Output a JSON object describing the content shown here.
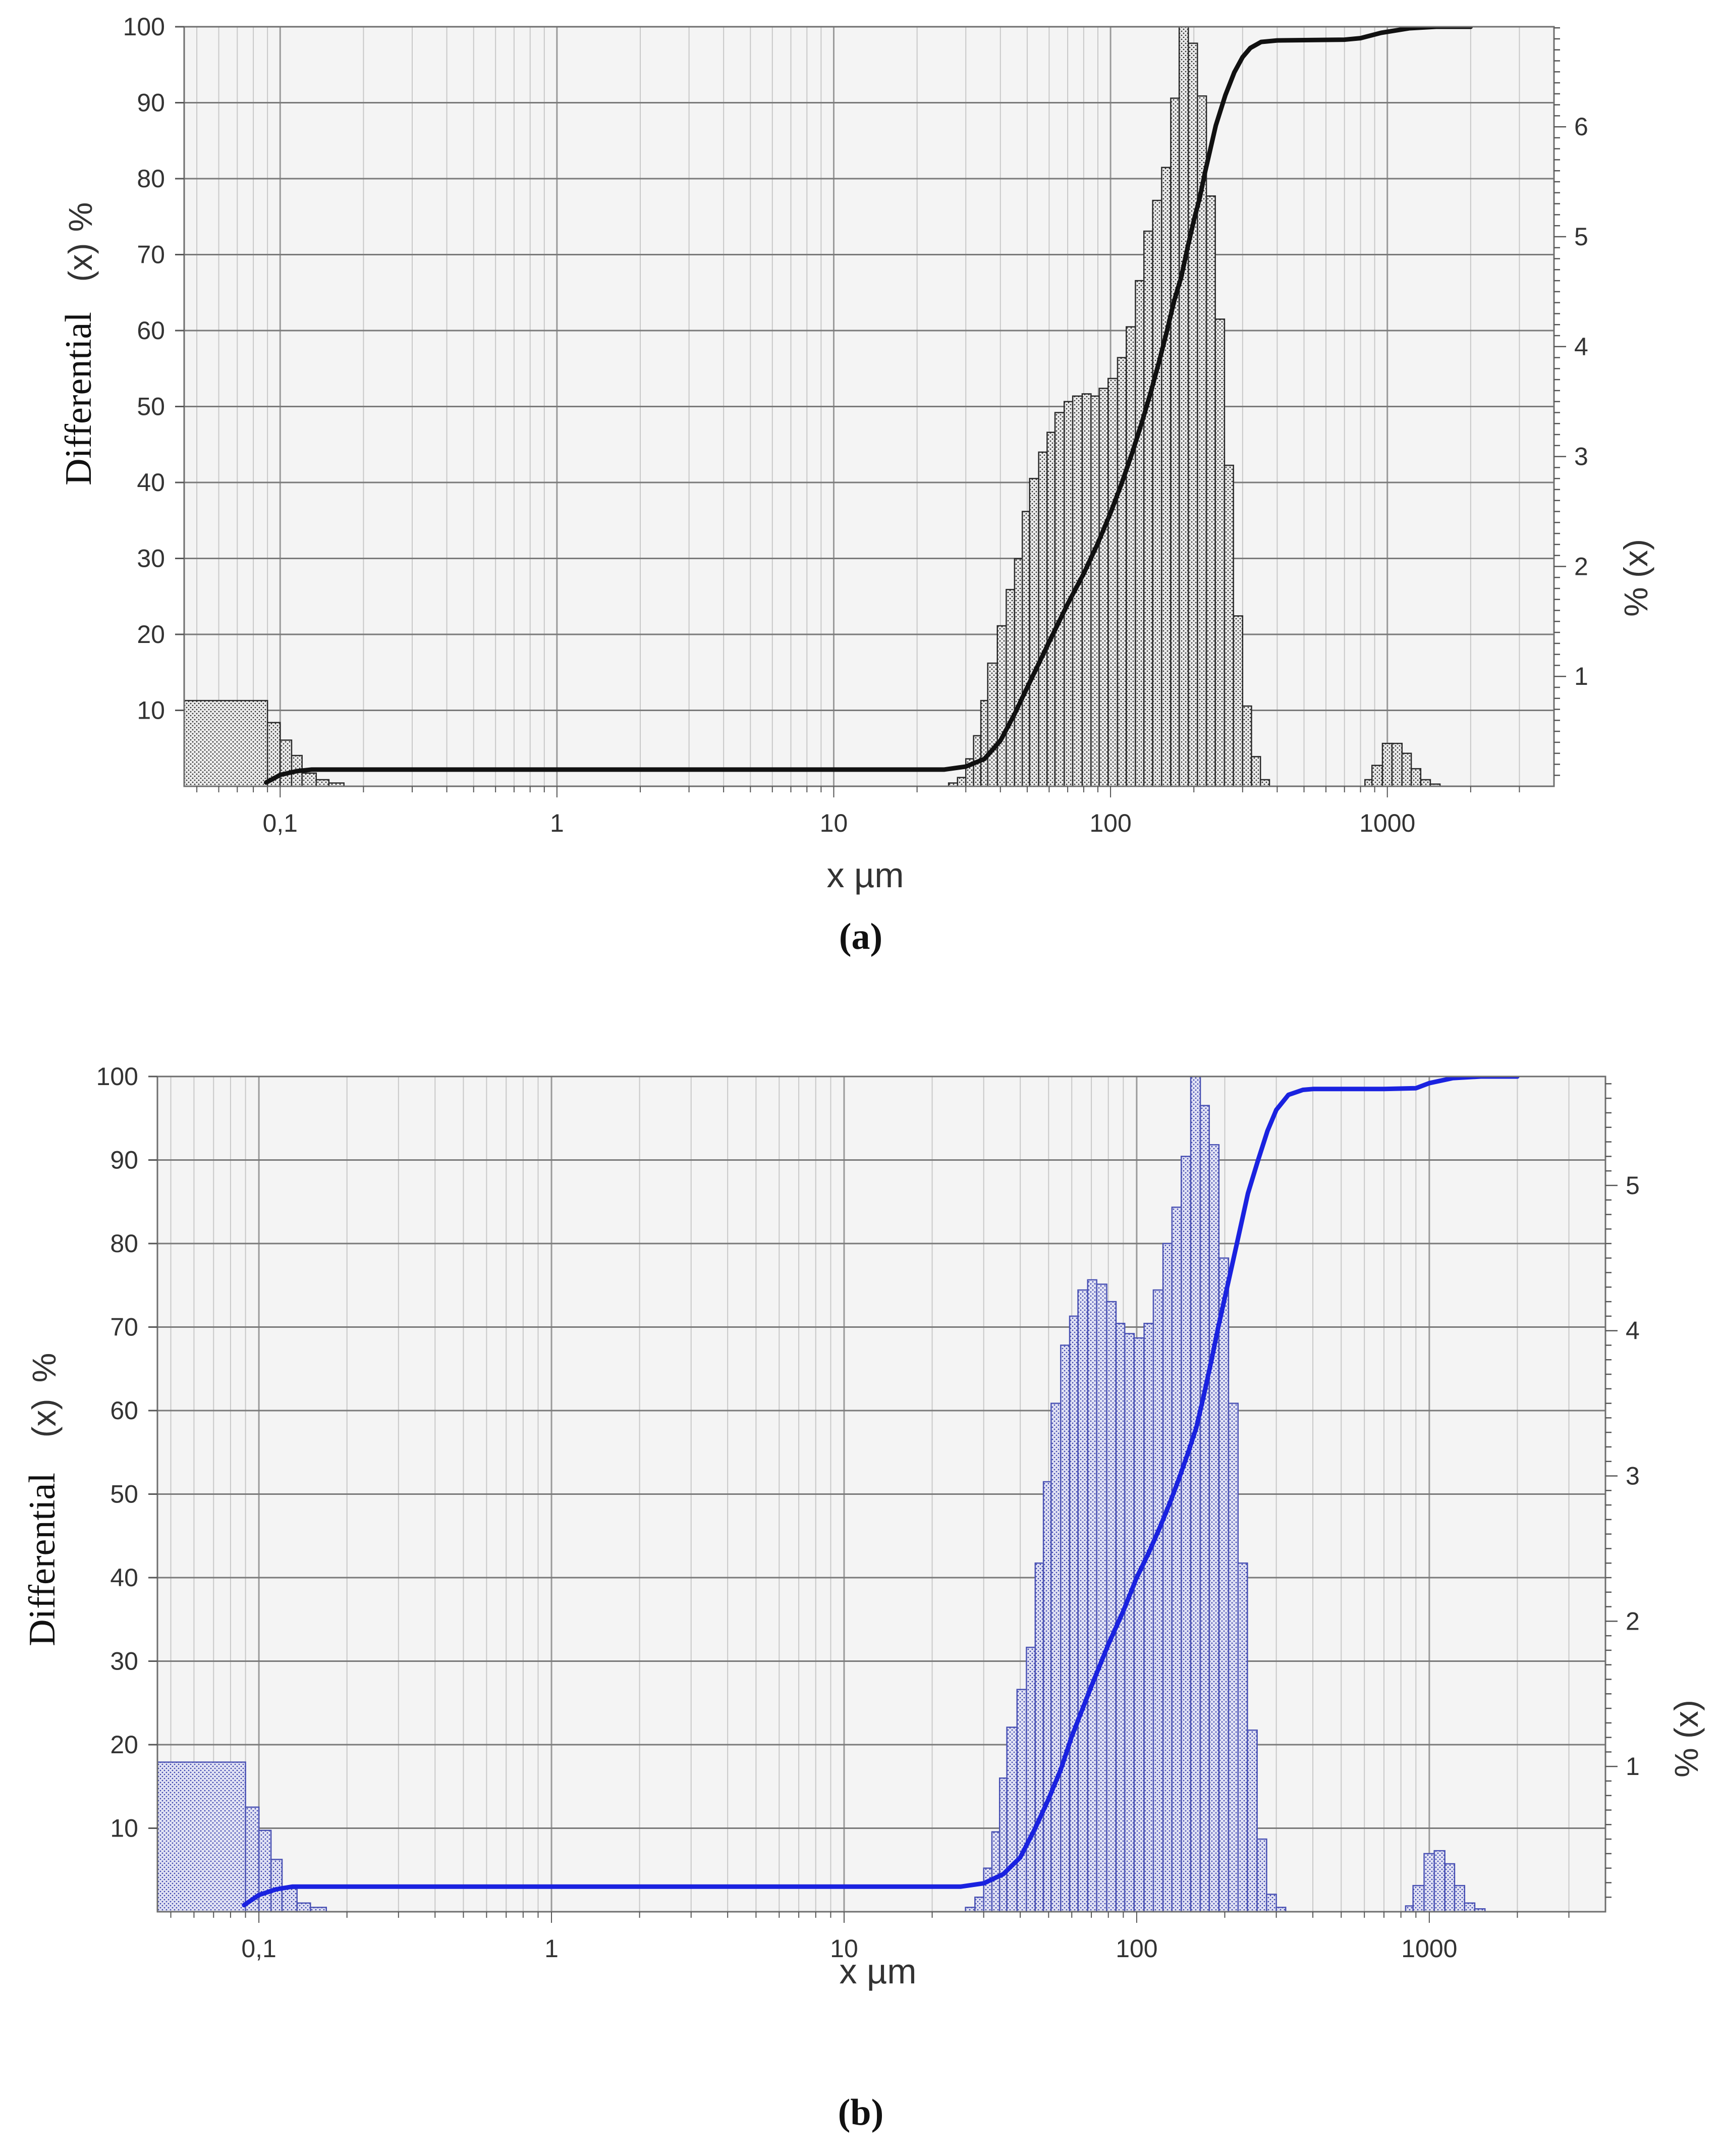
{
  "chart_data": [
    {
      "type": "bar",
      "panel_label": "(a)",
      "xlabel": "x µm",
      "ylabel_left": [
        "Differential",
        "(x)",
        "%"
      ],
      "ylabel_right": "% (x)",
      "x_scale": "log",
      "xlim": [
        0.045,
        4000
      ],
      "x_ticks": [
        {
          "value": 0.1,
          "label": "0,1"
        },
        {
          "value": 1,
          "label": "1"
        },
        {
          "value": 10,
          "label": "10"
        },
        {
          "value": 100,
          "label": "100"
        },
        {
          "value": 1000,
          "label": "1000"
        }
      ],
      "ylim_left": [
        0,
        100
      ],
      "y_ticks_left": [
        10,
        20,
        30,
        40,
        50,
        60,
        70,
        80,
        90,
        100
      ],
      "ylim_right": [
        0,
        6.91
      ],
      "y_ticks_right": [
        1,
        2,
        3,
        4,
        5,
        6
      ],
      "grid": true,
      "colors": {
        "bar_fill": "#e9e9e9",
        "bar_edge": "#222222",
        "line": "#111111",
        "plot_bg": "#f4f4f4"
      },
      "series": [
        {
          "kind": "histogram",
          "axis": "right",
          "bins": [
            [
              0.045,
              0.09,
              0.78
            ],
            [
              0.09,
              0.1,
              0.58
            ],
            [
              0.1,
              0.11,
              0.42
            ],
            [
              0.11,
              0.12,
              0.28
            ],
            [
              0.12,
              0.135,
              0.12
            ],
            [
              0.135,
              0.15,
              0.06
            ],
            [
              0.15,
              0.17,
              0.03
            ],
            [
              26,
              28,
              0.03
            ],
            [
              28,
              30,
              0.08
            ],
            [
              30,
              32,
              0.25
            ],
            [
              32,
              34,
              0.46
            ],
            [
              34,
              36,
              0.78
            ],
            [
              36,
              39,
              1.12
            ],
            [
              39,
              42,
              1.46
            ],
            [
              42,
              45,
              1.79
            ],
            [
              45,
              48,
              2.07
            ],
            [
              48,
              51,
              2.5
            ],
            [
              51,
              55,
              2.8
            ],
            [
              55,
              59,
              3.04
            ],
            [
              59,
              63,
              3.22
            ],
            [
              63,
              68,
              3.4
            ],
            [
              68,
              73,
              3.5
            ],
            [
              73,
              79,
              3.55
            ],
            [
              79,
              85,
              3.57
            ],
            [
              85,
              91,
              3.55
            ],
            [
              91,
              98,
              3.62
            ],
            [
              98,
              106,
              3.71
            ],
            [
              106,
              114,
              3.9
            ],
            [
              114,
              123,
              4.18
            ],
            [
              123,
              132,
              4.6
            ],
            [
              132,
              142,
              5.05
            ],
            [
              142,
              153,
              5.33
            ],
            [
              153,
              165,
              5.63
            ],
            [
              165,
              177,
              6.26
            ],
            [
              177,
              191,
              6.91
            ],
            [
              191,
              206,
              6.76
            ],
            [
              206,
              222,
              6.28
            ],
            [
              222,
              239,
              5.37
            ],
            [
              239,
              258,
              4.25
            ],
            [
              258,
              278,
              2.92
            ],
            [
              278,
              300,
              1.55
            ],
            [
              300,
              323,
              0.73
            ],
            [
              323,
              348,
              0.27
            ],
            [
              348,
              375,
              0.06
            ],
            [
              830,
              880,
              0.06
            ],
            [
              880,
              960,
              0.19
            ],
            [
              960,
              1040,
              0.39
            ],
            [
              1040,
              1130,
              0.39
            ],
            [
              1130,
              1220,
              0.3
            ],
            [
              1220,
              1320,
              0.16
            ],
            [
              1320,
              1430,
              0.06
            ],
            [
              1430,
              1550,
              0.02
            ]
          ]
        },
        {
          "kind": "cumulative",
          "axis": "left",
          "points": [
            [
              0.089,
              0.5
            ],
            [
              0.1,
              1.5
            ],
            [
              0.115,
              2.0
            ],
            [
              0.13,
              2.2
            ],
            [
              0.2,
              2.2
            ],
            [
              1,
              2.2
            ],
            [
              10,
              2.2
            ],
            [
              25,
              2.2
            ],
            [
              30,
              2.6
            ],
            [
              35,
              3.6
            ],
            [
              40,
              6
            ],
            [
              45,
              9.5
            ],
            [
              50,
              13
            ],
            [
              60,
              19
            ],
            [
              70,
              24
            ],
            [
              80,
              28
            ],
            [
              90,
              32
            ],
            [
              100,
              36
            ],
            [
              110,
              40
            ],
            [
              120,
              44
            ],
            [
              130,
              48
            ],
            [
              140,
              52
            ],
            [
              150,
              56
            ],
            [
              160,
              60
            ],
            [
              170,
              64
            ],
            [
              180,
              67
            ],
            [
              190,
              71
            ],
            [
              200,
              74.5
            ],
            [
              210,
              77.5
            ],
            [
              220,
              81
            ],
            [
              240,
              87
            ],
            [
              260,
              91
            ],
            [
              280,
              94
            ],
            [
              300,
              96
            ],
            [
              320,
              97.2
            ],
            [
              350,
              98
            ],
            [
              400,
              98.2
            ],
            [
              700,
              98.3
            ],
            [
              800,
              98.5
            ],
            [
              950,
              99.2
            ],
            [
              1200,
              99.8
            ],
            [
              1500,
              100
            ],
            [
              2000,
              100
            ]
          ]
        }
      ]
    },
    {
      "type": "bar",
      "panel_label": "(b)",
      "xlabel": "x µm",
      "ylabel_left": [
        "Differential",
        "(x)",
        "%"
      ],
      "ylabel_right": "% (x)",
      "x_scale": "log",
      "xlim": [
        0.045,
        4000
      ],
      "x_ticks": [
        {
          "value": 0.1,
          "label": "0,1"
        },
        {
          "value": 1,
          "label": "1"
        },
        {
          "value": 10,
          "label": "10"
        },
        {
          "value": 100,
          "label": "100"
        },
        {
          "value": 1000,
          "label": "1000"
        }
      ],
      "ylim_left": [
        0,
        100
      ],
      "y_ticks_left": [
        10,
        20,
        30,
        40,
        50,
        60,
        70,
        80,
        90,
        100
      ],
      "ylim_right": [
        0,
        5.75
      ],
      "y_ticks_right": [
        1,
        2,
        3,
        4,
        5
      ],
      "grid": true,
      "colors": {
        "bar_fill": "#dfe0f3",
        "bar_edge": "#4a52b4",
        "line": "#1a22e0",
        "plot_bg": "#f4f4f4"
      },
      "series": [
        {
          "kind": "histogram",
          "axis": "right",
          "bins": [
            [
              0.045,
              0.09,
              1.03
            ],
            [
              0.09,
              0.1,
              0.72
            ],
            [
              0.1,
              0.11,
              0.56
            ],
            [
              0.11,
              0.12,
              0.36
            ],
            [
              0.12,
              0.135,
              0.16
            ],
            [
              0.135,
              0.15,
              0.06
            ],
            [
              0.15,
              0.17,
              0.03
            ],
            [
              26,
              28,
              0.03
            ],
            [
              28,
              30,
              0.1
            ],
            [
              30,
              32,
              0.3
            ],
            [
              32,
              34,
              0.55
            ],
            [
              34,
              36,
              0.92
            ],
            [
              36,
              39,
              1.27
            ],
            [
              39,
              42,
              1.53
            ],
            [
              42,
              45,
              1.82
            ],
            [
              45,
              48,
              2.4
            ],
            [
              48,
              51,
              2.96
            ],
            [
              51,
              55,
              3.5
            ],
            [
              55,
              59,
              3.9
            ],
            [
              59,
              63,
              4.1
            ],
            [
              63,
              68,
              4.28
            ],
            [
              68,
              73,
              4.35
            ],
            [
              73,
              79,
              4.32
            ],
            [
              79,
              85,
              4.2
            ],
            [
              85,
              91,
              4.05
            ],
            [
              91,
              98,
              3.98
            ],
            [
              98,
              106,
              3.95
            ],
            [
              106,
              114,
              4.05
            ],
            [
              114,
              123,
              4.28
            ],
            [
              123,
              132,
              4.6
            ],
            [
              132,
              142,
              4.85
            ],
            [
              142,
              153,
              5.2
            ],
            [
              153,
              165,
              5.75
            ],
            [
              165,
              177,
              5.55
            ],
            [
              177,
              191,
              5.28
            ],
            [
              191,
              206,
              4.5
            ],
            [
              206,
              222,
              3.5
            ],
            [
              222,
              239,
              2.4
            ],
            [
              239,
              258,
              1.25
            ],
            [
              258,
              278,
              0.5
            ],
            [
              278,
              300,
              0.12
            ],
            [
              300,
              323,
              0.03
            ],
            [
              830,
              880,
              0.04
            ],
            [
              880,
              960,
              0.18
            ],
            [
              960,
              1040,
              0.4
            ],
            [
              1040,
              1130,
              0.42
            ],
            [
              1130,
              1220,
              0.33
            ],
            [
              1220,
              1320,
              0.18
            ],
            [
              1320,
              1430,
              0.06
            ],
            [
              1430,
              1550,
              0.02
            ]
          ]
        },
        {
          "kind": "cumulative",
          "axis": "left",
          "points": [
            [
              0.089,
              0.8
            ],
            [
              0.1,
              2.0
            ],
            [
              0.115,
              2.7
            ],
            [
              0.13,
              3.0
            ],
            [
              0.2,
              3.0
            ],
            [
              1,
              3.0
            ],
            [
              10,
              3.0
            ],
            [
              25,
              3.0
            ],
            [
              30,
              3.4
            ],
            [
              35,
              4.5
            ],
            [
              40,
              6.5
            ],
            [
              45,
              10
            ],
            [
              50,
              13.5
            ],
            [
              55,
              17
            ],
            [
              60,
              21
            ],
            [
              70,
              27
            ],
            [
              80,
              32
            ],
            [
              90,
              36
            ],
            [
              100,
              40
            ],
            [
              110,
              43
            ],
            [
              120,
              46
            ],
            [
              130,
              49
            ],
            [
              140,
              52
            ],
            [
              150,
              55
            ],
            [
              160,
              58
            ],
            [
              170,
              62
            ],
            [
              180,
              66
            ],
            [
              190,
              70
            ],
            [
              200,
              73.5
            ],
            [
              220,
              80
            ],
            [
              240,
              86
            ],
            [
              260,
              90
            ],
            [
              280,
              93.5
            ],
            [
              300,
              96
            ],
            [
              330,
              97.8
            ],
            [
              370,
              98.4
            ],
            [
              400,
              98.5
            ],
            [
              700,
              98.5
            ],
            [
              900,
              98.6
            ],
            [
              1000,
              99.2
            ],
            [
              1200,
              99.8
            ],
            [
              1500,
              100
            ],
            [
              2000,
              100
            ]
          ]
        }
      ]
    }
  ]
}
